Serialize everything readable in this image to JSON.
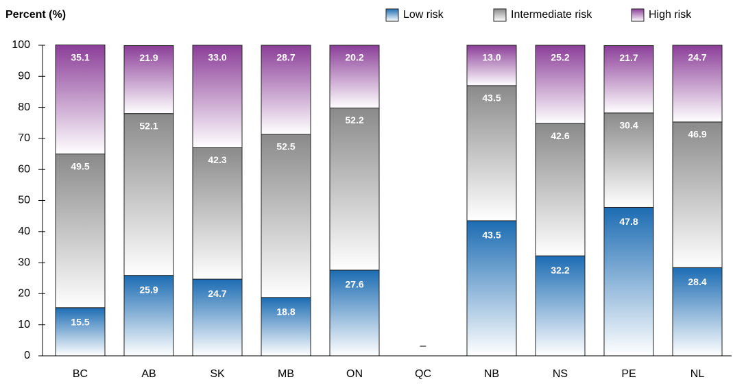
{
  "chart_data": {
    "type": "stacked_bar",
    "y_axis_label": "Percent (%)",
    "categories": [
      "BC",
      "AB",
      "SK",
      "MB",
      "ON",
      "QC",
      "NB",
      "NS",
      "PE",
      "NL"
    ],
    "series": [
      {
        "name": "Low risk",
        "color": "#1c6cb3",
        "values": [
          15.5,
          25.9,
          24.7,
          18.8,
          27.6,
          null,
          43.5,
          32.2,
          47.8,
          28.4
        ],
        "value_labels": [
          "15.5",
          "25.9",
          "24.7",
          "18.8",
          "27.6",
          "–",
          "43.5",
          "32.2",
          "47.8",
          "28.4"
        ]
      },
      {
        "name": "Intermediate risk",
        "color": "#8a8a8a",
        "values": [
          49.5,
          52.1,
          42.3,
          52.5,
          52.2,
          null,
          43.5,
          42.6,
          30.4,
          46.9
        ],
        "value_labels": [
          "49.5",
          "52.1",
          "42.3",
          "52.5",
          "52.2",
          null,
          "43.5",
          "42.6",
          "30.4",
          "46.9"
        ]
      },
      {
        "name": "High risk",
        "color": "#8b3e98",
        "values": [
          35.1,
          21.9,
          33.0,
          28.7,
          20.2,
          null,
          13.0,
          25.2,
          21.7,
          24.7
        ],
        "value_labels": [
          "35.1",
          "21.9",
          "33.0",
          "28.7",
          "20.2",
          null,
          "13.0",
          "25.2",
          "21.7",
          "24.7"
        ]
      }
    ],
    "ylim": [
      0,
      100
    ],
    "yticks": [
      0,
      10,
      20,
      30,
      40,
      50,
      60,
      70,
      80,
      90,
      100
    ],
    "grid": false,
    "legend": "top-right"
  }
}
